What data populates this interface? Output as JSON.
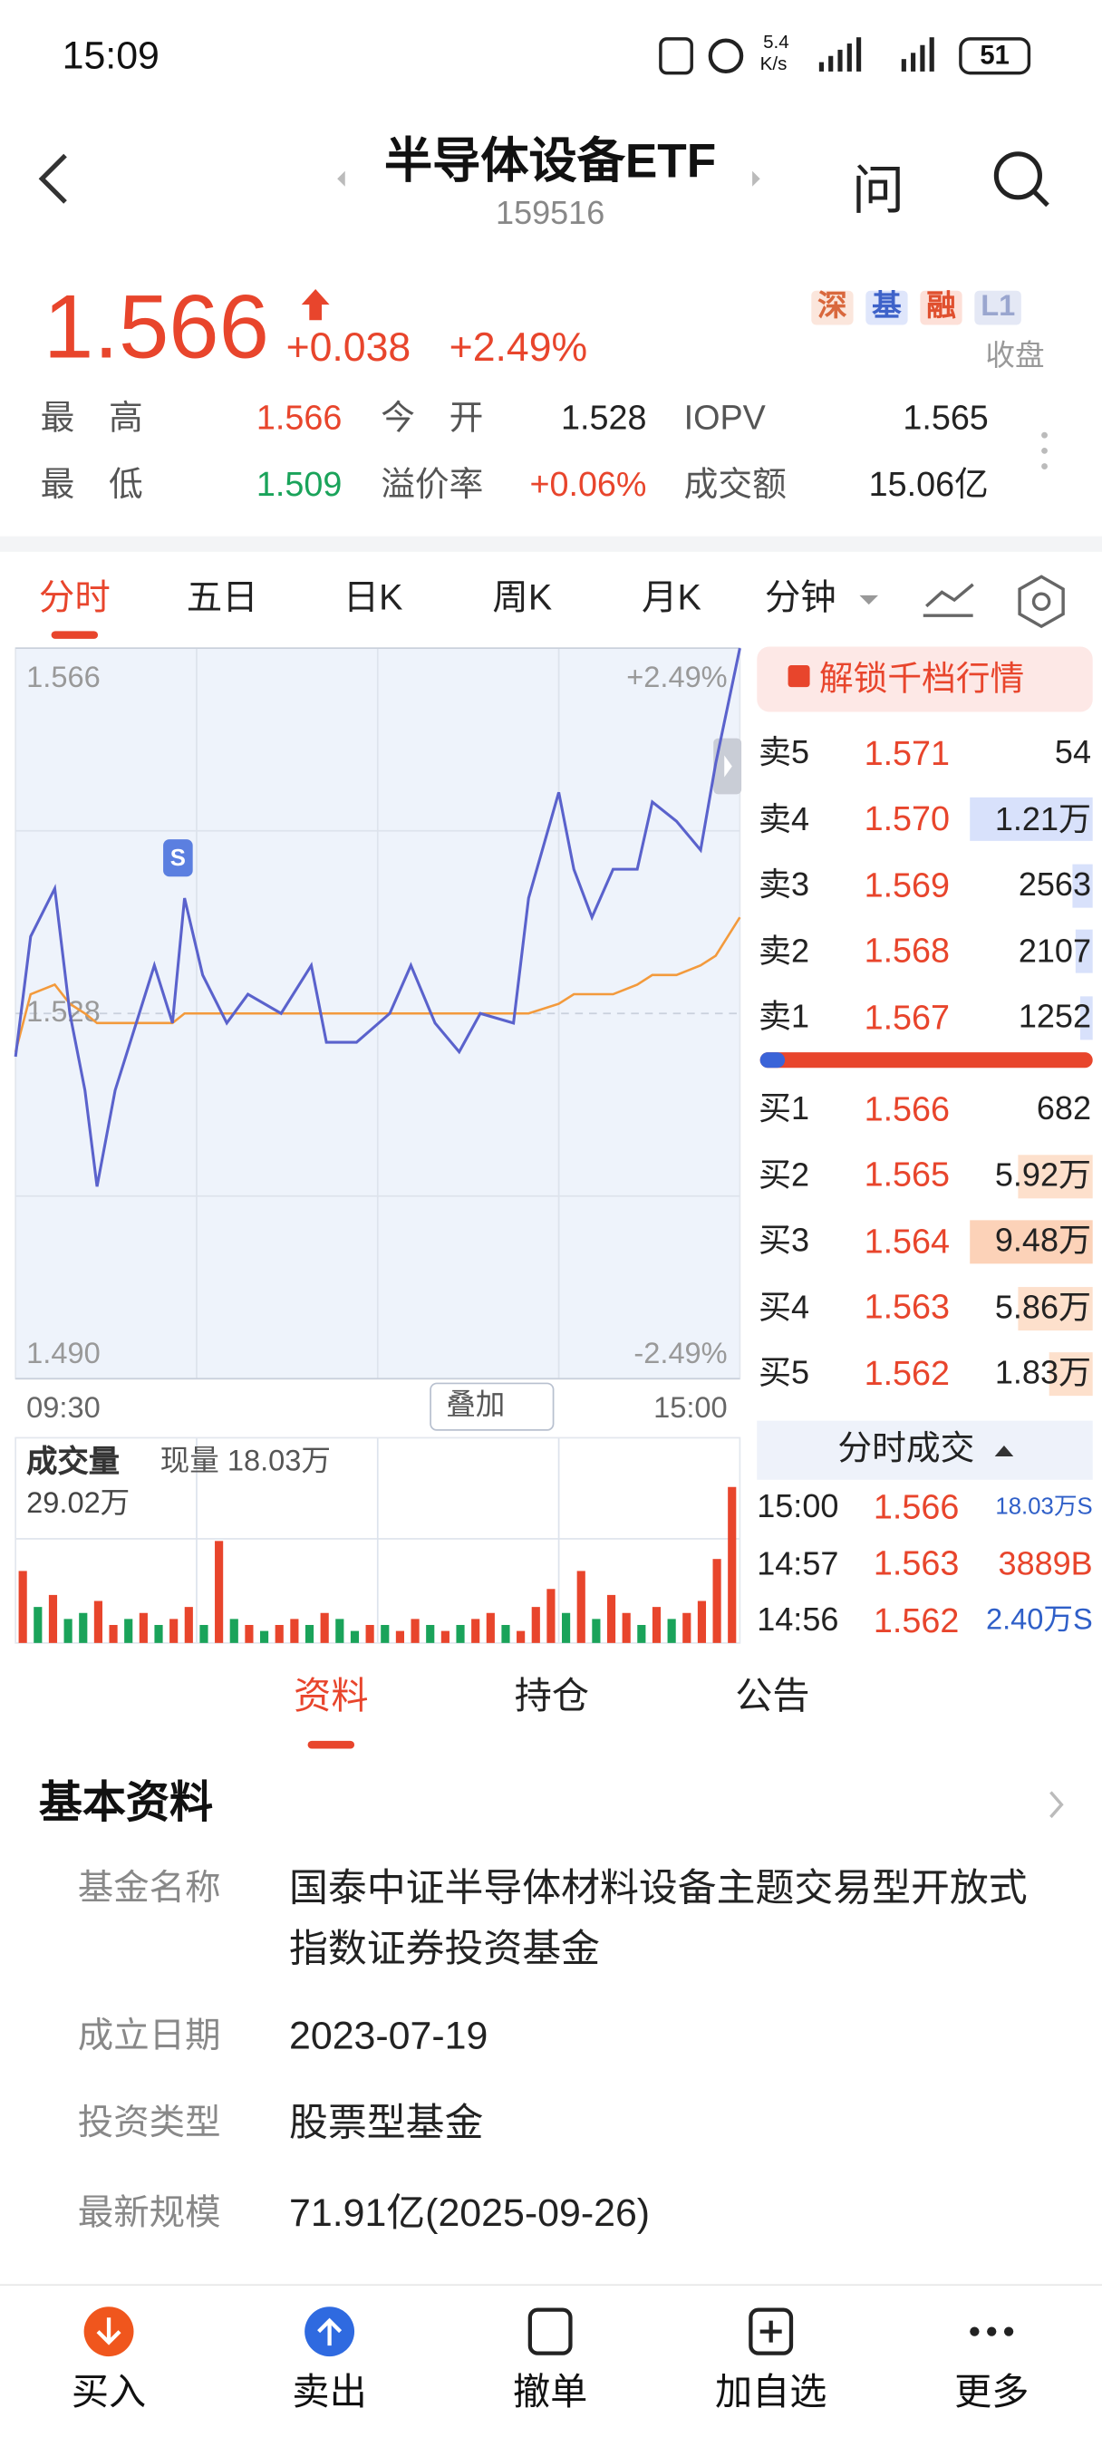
{
  "status_bar": {
    "time": "15:09",
    "net_speed": "5.4",
    "net_unit": "K/s",
    "battery": "51"
  },
  "header": {
    "title": "半导体设备ETF",
    "code": "159516",
    "ask": "问"
  },
  "quote": {
    "price": "1.566",
    "change": "+0.038",
    "change_pct": "+2.49%",
    "tags": [
      "深",
      "基",
      "融",
      "L1"
    ],
    "market_status": "收盘"
  },
  "stats": [
    {
      "label": "最　高",
      "value": "1.566"
    },
    {
      "label": "今　开",
      "value": "1.528"
    },
    {
      "label": "IOPV",
      "value": "1.565"
    },
    {
      "label": "最　低",
      "value": "1.509"
    },
    {
      "label": "溢价率",
      "value": "+0.06%"
    },
    {
      "label": "成交额",
      "value": "15.06亿"
    }
  ],
  "tabs": [
    "分时",
    "五日",
    "日K",
    "周K",
    "月K",
    "分钟"
  ],
  "chart_data": [
    {
      "type": "line",
      "x": [
        0,
        5,
        13,
        18,
        23,
        27,
        33,
        41,
        46,
        52,
        56,
        62,
        70,
        77,
        88,
        98,
        103,
        113,
        124,
        131,
        139,
        147,
        154,
        165,
        170,
        180,
        185,
        191,
        198,
        206,
        211,
        219,
        227,
        232,
        240
      ],
      "xlim": [
        0,
        240
      ],
      "xticks": [
        {
          "value": 0,
          "label": "09:30"
        },
        {
          "value": 240,
          "label": "15:00"
        }
      ],
      "ylim": [
        1.49,
        1.566
      ],
      "yticks": [
        {
          "value": 1.49,
          "label": "1.490"
        },
        1.528,
        1.566
      ],
      "y2lim": [
        -2.49,
        2.49
      ],
      "y2ticks": [
        {
          "value": -2.49,
          "label": "-2.49%"
        },
        {
          "value": 2.49,
          "label": "+2.49%"
        }
      ],
      "series": [
        {
          "color": "#5a62cc",
          "values": [
            1.5235,
            1.536,
            1.541,
            1.528,
            1.52,
            1.51,
            1.52,
            1.528,
            1.533,
            1.527,
            1.54,
            1.532,
            1.527,
            1.53,
            1.528,
            1.533,
            1.525,
            1.525,
            1.528,
            1.533,
            1.527,
            1.524,
            1.528,
            1.527,
            1.54,
            1.551,
            1.543,
            1.538,
            1.543,
            1.543,
            1.55,
            1.548,
            1.545,
            1.554,
            1.566
          ]
        },
        {
          "color": "#f39a3c",
          "values": [
            1.524,
            1.53,
            1.531,
            1.529,
            1.528,
            1.527,
            1.527,
            1.527,
            1.527,
            1.527,
            1.528,
            1.528,
            1.528,
            1.528,
            1.528,
            1.528,
            1.528,
            1.528,
            1.528,
            1.528,
            1.528,
            1.528,
            1.528,
            1.528,
            1.528,
            1.529,
            1.53,
            1.53,
            1.53,
            1.531,
            1.532,
            1.532,
            1.533,
            1.534,
            1.538
          ]
        }
      ]
    },
    {
      "type": "bar",
      "x": [
        0,
        5,
        10,
        15,
        20,
        25,
        30,
        35,
        40,
        45,
        50,
        55,
        60,
        65,
        70,
        75,
        80,
        85,
        90,
        95,
        100,
        105,
        110,
        115,
        120,
        125,
        130,
        135,
        140,
        145,
        150,
        155,
        160,
        165,
        170,
        175,
        180,
        185,
        190,
        195,
        200,
        205,
        210,
        215,
        220,
        225,
        230,
        235
      ],
      "xlim": [
        0,
        240
      ],
      "ylim": [
        0,
        29.02
      ],
      "yticks": [
        {
          "value": 29.02,
          "label": "29.02万"
        }
      ],
      "values": [
        12,
        6,
        8,
        4,
        5,
        7,
        3,
        4,
        5,
        3,
        4,
        6,
        3,
        17,
        4,
        3,
        2,
        3,
        4,
        3,
        5,
        4,
        2,
        3,
        3,
        2,
        4,
        3,
        2,
        3,
        4,
        5,
        3,
        2,
        6,
        9,
        5,
        12,
        4,
        8,
        5,
        3,
        6,
        4,
        5,
        7,
        14,
        26
      ],
      "colors": [
        "#e8452c",
        "#1aa35a",
        "#e8452c",
        "#1aa35a",
        "#1aa35a",
        "#e8452c",
        "#e8452c",
        "#1aa35a",
        "#e8452c",
        "#1aa35a",
        "#e8452c",
        "#e8452c",
        "#1aa35a",
        "#e8452c",
        "#1aa35a",
        "#e8452c",
        "#1aa35a",
        "#e8452c",
        "#e8452c",
        "#1aa35a",
        "#e8452c",
        "#1aa35a",
        "#1aa35a",
        "#e8452c",
        "#1aa35a",
        "#e8452c",
        "#e8452c",
        "#1aa35a",
        "#e8452c",
        "#1aa35a",
        "#e8452c",
        "#e8452c",
        "#1aa35a",
        "#e8452c",
        "#e8452c",
        "#e8452c",
        "#1aa35a",
        "#e8452c",
        "#1aa35a",
        "#e8452c",
        "#e8452c",
        "#1aa35a",
        "#e8452c",
        "#1aa35a",
        "#e8452c",
        "#e8452c",
        "#e8452c",
        "#e8452c"
      ]
    }
  ],
  "chart_controls": {
    "overlay": "叠加",
    "volume_label": "成交量",
    "current_volume": "现量 18.03万"
  },
  "order_book": {
    "unlock": "解锁千档行情",
    "asks": [
      {
        "label": "卖5",
        "price": "1.571",
        "volume": "54"
      },
      {
        "label": "卖4",
        "price": "1.570",
        "volume": "1.21万"
      },
      {
        "label": "卖3",
        "price": "1.569",
        "volume": "2563"
      },
      {
        "label": "卖2",
        "price": "1.568",
        "volume": "2107"
      },
      {
        "label": "卖1",
        "price": "1.567",
        "volume": "1252"
      }
    ],
    "bids": [
      {
        "label": "买1",
        "price": "1.566",
        "volume": "682"
      },
      {
        "label": "买2",
        "price": "1.565",
        "volume": "5.92万"
      },
      {
        "label": "买3",
        "price": "1.564",
        "volume": "9.48万"
      },
      {
        "label": "买4",
        "price": "1.563",
        "volume": "5.86万"
      },
      {
        "label": "买5",
        "price": "1.562",
        "volume": "1.83万"
      }
    ]
  },
  "trades": {
    "title": "分时成交",
    "rows": [
      {
        "time": "15:00",
        "price": "1.566",
        "volume": "18.03万S"
      },
      {
        "time": "14:57",
        "price": "1.563",
        "volume": "3889B"
      },
      {
        "time": "14:56",
        "price": "1.562",
        "volume": "2.40万S"
      }
    ]
  },
  "section_tabs": [
    "资料",
    "持仓",
    "公告"
  ],
  "basic_info": {
    "title": "基本资料",
    "rows": [
      {
        "label": "基金名称",
        "value": "国泰中证半导体材料设备主题交易型开放式指数证券投资基金"
      },
      {
        "label": "成立日期",
        "value": "2023-07-19"
      },
      {
        "label": "投资类型",
        "value": "股票型基金"
      },
      {
        "label": "最新规模",
        "value": "71.91亿(2025-09-26)"
      }
    ]
  },
  "bottom_nav": [
    "买入",
    "卖出",
    "撤单",
    "加自选",
    "更多"
  ]
}
